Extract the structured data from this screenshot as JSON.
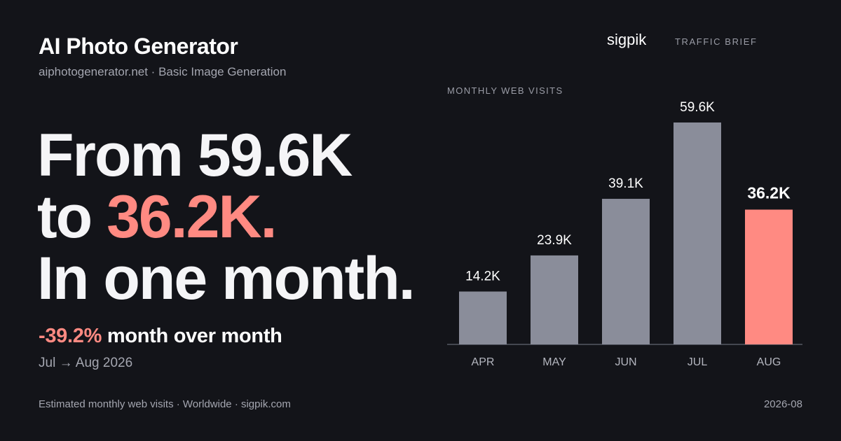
{
  "header": {
    "title": "AI Photo Generator",
    "subtitle": "aiphotogenerator.net · Basic Image Generation",
    "brand": "sigpik",
    "brief_label": "TRAFFIC BRIEF"
  },
  "headline": {
    "line1": "From 59.6K",
    "line2_prefix": "to ",
    "line2_accent": "36.2K.",
    "line3": "In one month."
  },
  "change": {
    "percent": "-39.2%",
    "label": " month over month",
    "period": "Jul → Aug 2026"
  },
  "footer": {
    "source": "Estimated monthly web visits · Worldwide · sigpik.com",
    "date": "2026-08"
  },
  "colors": {
    "background": "#131419",
    "bar": "#8a8d9a",
    "highlight": "#ff8a82",
    "axis": "#555863"
  },
  "chart_data": {
    "type": "bar",
    "title": "MONTHLY WEB VISITS",
    "categories": [
      "APR",
      "MAY",
      "JUN",
      "JUL",
      "AUG"
    ],
    "values": [
      14.2,
      23.9,
      39.1,
      59.6,
      36.2
    ],
    "labels": [
      "14.2K",
      "23.9K",
      "39.1K",
      "59.6K",
      "36.2K"
    ],
    "unit": "K visits",
    "highlight_index": 4,
    "ylim": [
      0,
      62
    ],
    "grid": false,
    "legend": "none"
  }
}
